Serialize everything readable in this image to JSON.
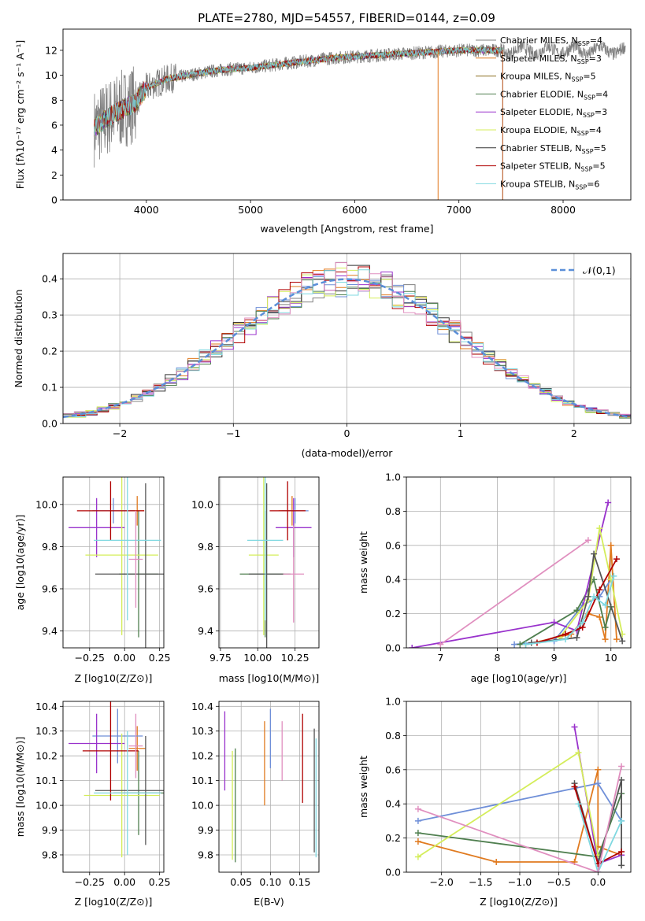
{
  "figure_title": "PLATE=2780, MJD=54557, FIBERID=0144, z=0.09",
  "chart_data": [
    {
      "type": "line",
      "id": "spectrum",
      "xlabel": "wavelength [Angstrom, rest frame]",
      "ylabel": "Flux [fλ10⁻¹⁷ erg cm⁻² s⁻¹ A⁻¹]",
      "xlim": [
        3200,
        8650
      ],
      "ylim": [
        0,
        13.7
      ],
      "xticks": [
        4000,
        5000,
        6000,
        7000,
        8000
      ],
      "yticks": [
        0,
        2,
        4,
        6,
        8,
        10,
        12
      ],
      "grid": false,
      "legend_position": "right",
      "continuum": {
        "x": [
          3500,
          3700,
          3900,
          4000,
          4200,
          4400,
          4600,
          4800,
          5000,
          5200,
          5400,
          5600,
          5800,
          6000,
          6200,
          6400,
          6600,
          6800,
          7000,
          7200,
          7400
        ],
        "y": [
          5.8,
          7.0,
          7.8,
          9.0,
          9.7,
          10.0,
          10.3,
          10.5,
          10.6,
          10.8,
          11.0,
          11.2,
          11.4,
          11.5,
          11.6,
          11.7,
          11.8,
          11.9,
          12.0,
          12.0,
          12.0
        ]
      },
      "observed_range": [
        3500,
        8600
      ],
      "legend": [
        {
          "name": "Chabrier MILES, N_SSP=4",
          "color": "#808080"
        },
        {
          "name": "Salpeter MILES, N_SSP=3",
          "color": "#e07a1f"
        },
        {
          "name": "Kroupa MILES, N_SSP=5",
          "color": "#8c6d1f"
        },
        {
          "name": "Chabrier ELODIE, N_SSP=4",
          "color": "#4f7f4f"
        },
        {
          "name": "Salpeter ELODIE, N_SSP=3",
          "color": "#9932cc"
        },
        {
          "name": "Kroupa ELODIE, N_SSP=4",
          "color": "#d4ed5a"
        },
        {
          "name": "Chabrier STELIB, N_SSP=5",
          "color": "#333333"
        },
        {
          "name": "Salpeter STELIB, N_SSP=5",
          "color": "#b00000"
        },
        {
          "name": "Kroupa STELIB, N_SSP=6",
          "color": "#7fd8e0"
        }
      ]
    },
    {
      "type": "line",
      "id": "residuals",
      "xlabel": "(data-model)/error",
      "ylabel": "Normed distribution",
      "xlim": [
        -2.5,
        2.5
      ],
      "ylim": [
        0,
        0.47
      ],
      "xticks": [
        -2,
        -1,
        0,
        1,
        2
      ],
      "yticks": [
        0.0,
        0.1,
        0.2,
        0.3,
        0.4
      ],
      "grid": true,
      "legend_position": "top-right",
      "legend": [
        "𝒩(0,1)"
      ],
      "bin_width": 0.1,
      "series_colors": [
        "#808080",
        "#e07a1f",
        "#6f8fd8",
        "#4f7f4f",
        "#9932cc",
        "#d4ed5a",
        "#333333",
        "#b00000",
        "#7fd8e0",
        "#e08fbf"
      ]
    },
    {
      "type": "scatter",
      "id": "age_vs_Z",
      "xlabel": "Z [log10(Z/Z⊙)]",
      "ylabel": "age  [log10(age/yr)]",
      "xlim": [
        -0.44,
        0.28
      ],
      "ylim": [
        9.32,
        10.13
      ],
      "xticks": [
        -0.25,
        0.0,
        0.25
      ],
      "yticks": [
        9.4,
        9.6,
        9.8,
        10.0
      ],
      "grid": true,
      "points": [
        {
          "x": 0.09,
          "y": 9.97,
          "xerr": 0.05,
          "yerr": 0.07,
          "color": "#e07a1f"
        },
        {
          "x": -0.08,
          "y": 9.97,
          "xerr": 0.15,
          "yerr": 0.06,
          "color": "#6f8fd8"
        },
        {
          "x": 0.1,
          "y": 9.67,
          "xerr": 0.14,
          "yerr": 0.3,
          "color": "#4f7f4f"
        },
        {
          "x": -0.2,
          "y": 9.89,
          "xerr": 0.2,
          "yerr": 0.14,
          "color": "#9932cc"
        },
        {
          "x": -0.02,
          "y": 9.76,
          "xerr": 0.26,
          "yerr": 0.38,
          "color": "#d4ed5a"
        },
        {
          "x": 0.15,
          "y": 9.67,
          "xerr": 0.36,
          "yerr": 0.43,
          "color": "#555555"
        },
        {
          "x": -0.1,
          "y": 9.97,
          "xerr": 0.24,
          "yerr": 0.14,
          "color": "#b00000"
        },
        {
          "x": 0.02,
          "y": 9.83,
          "xerr": 0.24,
          "yerr": 0.38,
          "color": "#7fd8e0"
        },
        {
          "x": 0.08,
          "y": 9.74,
          "xerr": 0.05,
          "yerr": 0.23,
          "color": "#e08fbf"
        }
      ]
    },
    {
      "type": "scatter",
      "id": "age_vs_mass",
      "xlabel": "mass [log10(M/M⊙)]",
      "ylabel": "",
      "xlim": [
        9.74,
        10.41
      ],
      "ylim": [
        9.32,
        10.13
      ],
      "xticks": [
        9.75,
        10.0,
        10.25
      ],
      "yticks": [
        9.4,
        9.6,
        9.8,
        10.0
      ],
      "grid": true,
      "points": [
        {
          "x": 10.23,
          "y": 9.97,
          "xerr": 0.09,
          "yerr": 0.07,
          "color": "#e07a1f"
        },
        {
          "x": 10.25,
          "y": 9.97,
          "xerr": 0.09,
          "yerr": 0.06,
          "color": "#6f8fd8"
        },
        {
          "x": 10.05,
          "y": 9.67,
          "xerr": 0.17,
          "yerr": 0.3,
          "color": "#4f7f4f"
        },
        {
          "x": 10.24,
          "y": 9.89,
          "xerr": 0.12,
          "yerr": 0.14,
          "color": "#9932cc"
        },
        {
          "x": 10.04,
          "y": 9.76,
          "xerr": 0.1,
          "yerr": 0.38,
          "color": "#d4ed5a"
        },
        {
          "x": 10.06,
          "y": 9.67,
          "xerr": 0.12,
          "yerr": 0.43,
          "color": "#555555"
        },
        {
          "x": 10.2,
          "y": 9.97,
          "xerr": 0.12,
          "yerr": 0.14,
          "color": "#b00000"
        },
        {
          "x": 10.05,
          "y": 9.83,
          "xerr": 0.12,
          "yerr": 0.38,
          "color": "#7fd8e0"
        },
        {
          "x": 10.24,
          "y": 9.67,
          "xerr": 0.07,
          "yerr": 0.23,
          "color": "#e08fbf"
        }
      ]
    },
    {
      "type": "line",
      "id": "massweight_vs_age",
      "xlabel": "age  [log10(age/yr)]",
      "ylabel": "mass weight",
      "xlim": [
        6.4,
        10.35
      ],
      "ylim": [
        0,
        1
      ],
      "xticks": [
        7,
        8,
        9,
        10
      ],
      "yticks": [
        0.0,
        0.2,
        0.4,
        0.6,
        0.8,
        1.0
      ],
      "grid": true,
      "series": [
        {
          "color": "#e07a1f",
          "x": [
            8.5,
            9.3,
            9.6,
            9.8,
            9.9,
            10.0,
            10.1
          ],
          "y": [
            0.02,
            0.08,
            0.2,
            0.18,
            0.05,
            0.6,
            0.05
          ]
        },
        {
          "color": "#6f8fd8",
          "x": [
            8.3,
            9.0,
            9.5,
            9.8,
            10.0
          ],
          "y": [
            0.02,
            0.04,
            0.25,
            0.3,
            0.4
          ]
        },
        {
          "color": "#4f7f4f",
          "x": [
            8.4,
            9.4,
            9.7,
            9.9,
            10.0
          ],
          "y": [
            0.02,
            0.22,
            0.4,
            0.12,
            0.24
          ]
        },
        {
          "color": "#9932cc",
          "x": [
            6.5,
            9.0,
            9.4,
            9.95
          ],
          "y": [
            0.0,
            0.15,
            0.1,
            0.85
          ]
        },
        {
          "color": "#d4ed5a",
          "x": [
            9.1,
            9.6,
            9.8,
            10.0,
            10.2
          ],
          "y": [
            0.06,
            0.28,
            0.7,
            0.4,
            0.08
          ]
        },
        {
          "color": "#555555",
          "x": [
            8.6,
            9.4,
            9.6,
            9.7,
            10.2
          ],
          "y": [
            0.03,
            0.06,
            0.3,
            0.55,
            0.04
          ]
        },
        {
          "color": "#b00000",
          "x": [
            8.7,
            9.2,
            9.5,
            9.8,
            10.1
          ],
          "y": [
            0.03,
            0.08,
            0.12,
            0.34,
            0.52
          ]
        },
        {
          "color": "#7fd8e0",
          "x": [
            8.5,
            9.2,
            9.5,
            9.7,
            9.9,
            10.05
          ],
          "y": [
            0.02,
            0.05,
            0.15,
            0.3,
            0.25,
            0.42
          ]
        },
        {
          "color": "#e08fbf",
          "x": [
            7.0,
            9.6
          ],
          "y": [
            0.02,
            0.63
          ]
        }
      ]
    },
    {
      "type": "scatter",
      "id": "mass_vs_Z",
      "xlabel": "Z [log10(Z/Z⊙)]",
      "ylabel": "mass [log10(M/M⊙)]",
      "xlim": [
        -0.44,
        0.28
      ],
      "ylim": [
        9.73,
        10.42
      ],
      "xticks": [
        -0.25,
        0.0,
        0.25
      ],
      "yticks": [
        9.8,
        9.9,
        10.0,
        10.1,
        10.2,
        10.3,
        10.4
      ],
      "grid": true,
      "points": [
        {
          "x": 0.09,
          "y": 10.23,
          "xerr": 0.06,
          "yerr": 0.09,
          "color": "#e07a1f"
        },
        {
          "x": -0.05,
          "y": 10.28,
          "xerr": 0.18,
          "yerr": 0.11,
          "color": "#6f8fd8"
        },
        {
          "x": 0.1,
          "y": 10.05,
          "xerr": 0.18,
          "yerr": 0.17,
          "color": "#4f7f4f"
        },
        {
          "x": -0.2,
          "y": 10.25,
          "xerr": 0.2,
          "yerr": 0.12,
          "color": "#9932cc"
        },
        {
          "x": -0.02,
          "y": 10.04,
          "xerr": 0.27,
          "yerr": 0.25,
          "color": "#d4ed5a"
        },
        {
          "x": 0.15,
          "y": 10.06,
          "xerr": 0.36,
          "yerr": 0.22,
          "color": "#555555"
        },
        {
          "x": -0.1,
          "y": 10.22,
          "xerr": 0.2,
          "yerr": 0.2,
          "color": "#b00000"
        },
        {
          "x": 0.02,
          "y": 10.05,
          "xerr": 0.24,
          "yerr": 0.25,
          "color": "#7fd8e0"
        },
        {
          "x": 0.08,
          "y": 10.24,
          "xerr": 0.05,
          "yerr": 0.13,
          "color": "#e08fbf"
        }
      ]
    },
    {
      "type": "scatter",
      "id": "mass_vs_EBV",
      "xlabel": "E(B-V)",
      "ylabel": "",
      "xlim": [
        0.012,
        0.183
      ],
      "ylim": [
        9.73,
        10.42
      ],
      "xticks": [
        0.05,
        0.1,
        0.15
      ],
      "yticks": [
        9.8,
        9.9,
        10.0,
        10.1,
        10.2,
        10.3,
        10.4
      ],
      "grid": true,
      "points": [
        {
          "x": 0.022,
          "y": 10.22,
          "yerr": 0.16,
          "color": "#9932cc"
        },
        {
          "x": 0.035,
          "y": 10.0,
          "yerr": 0.22,
          "color": "#d4ed5a"
        },
        {
          "x": 0.04,
          "y": 10.0,
          "yerr": 0.23,
          "color": "#4f7f4f"
        },
        {
          "x": 0.09,
          "y": 10.17,
          "yerr": 0.17,
          "color": "#e07a1f"
        },
        {
          "x": 0.1,
          "y": 10.27,
          "yerr": 0.12,
          "color": "#6f8fd8"
        },
        {
          "x": 0.12,
          "y": 10.22,
          "yerr": 0.12,
          "color": "#e08fbf"
        },
        {
          "x": 0.155,
          "y": 10.19,
          "yerr": 0.18,
          "color": "#b00000"
        },
        {
          "x": 0.175,
          "y": 10.06,
          "yerr": 0.25,
          "color": "#555555"
        },
        {
          "x": 0.178,
          "y": 10.03,
          "yerr": 0.24,
          "color": "#7fd8e0"
        }
      ]
    },
    {
      "type": "line",
      "id": "massweight_vs_Z",
      "xlabel": "Z [log10(Z/Z⊙)]",
      "ylabel": "mass weight",
      "xlim": [
        -2.45,
        0.42
      ],
      "ylim": [
        0,
        1
      ],
      "xticks": [
        -2.0,
        -1.5,
        -1.0,
        -0.5,
        0.0
      ],
      "yticks": [
        0.0,
        0.2,
        0.4,
        0.6,
        0.8,
        1.0
      ],
      "grid": true,
      "series": [
        {
          "color": "#e07a1f",
          "x": [
            -2.3,
            -1.3,
            -0.3,
            0.0,
            0.0,
            0.3
          ],
          "y": [
            0.18,
            0.06,
            0.06,
            0.6,
            0.15,
            0.1
          ]
        },
        {
          "color": "#6f8fd8",
          "x": [
            -2.3,
            0.0,
            0.3
          ],
          "y": [
            0.3,
            0.52,
            0.3
          ]
        },
        {
          "color": "#4f7f4f",
          "x": [
            -2.3,
            0.0,
            0.3
          ],
          "y": [
            0.23,
            0.09,
            0.46
          ]
        },
        {
          "color": "#9932cc",
          "x": [
            -0.3,
            0.0,
            0.3
          ],
          "y": [
            0.85,
            0.05,
            0.1
          ]
        },
        {
          "color": "#d4ed5a",
          "x": [
            -2.3,
            -0.25,
            0.0
          ],
          "y": [
            0.09,
            0.7,
            0.1
          ]
        },
        {
          "color": "#555555",
          "x": [
            -0.3,
            0.0,
            0.3,
            0.3
          ],
          "y": [
            0.52,
            0.05,
            0.54,
            0.04
          ]
        },
        {
          "color": "#b00000",
          "x": [
            -0.3,
            0.0,
            0.3
          ],
          "y": [
            0.5,
            0.05,
            0.12
          ]
        },
        {
          "color": "#7fd8e0",
          "x": [
            -0.25,
            0.0,
            0.3
          ],
          "y": [
            0.4,
            0.0,
            0.3
          ]
        },
        {
          "color": "#e08fbf",
          "x": [
            -2.3,
            0.0,
            0.3
          ],
          "y": [
            0.37,
            0.0,
            0.62
          ]
        }
      ]
    }
  ]
}
